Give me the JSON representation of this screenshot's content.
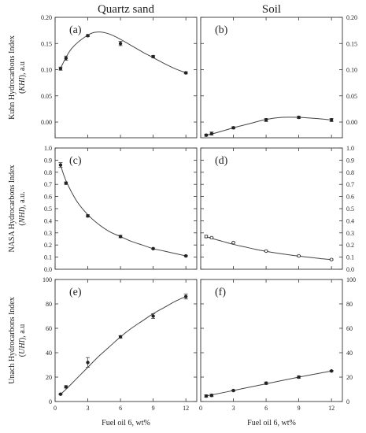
{
  "column_titles": [
    "Quartz sand",
    "Soil"
  ],
  "row_ylabels": [
    {
      "line1": "Kuhn Hydrocarbons Index",
      "abbr": "KHI",
      "unit": "), a.u"
    },
    {
      "line1": "NASA Hydrocarbons Index",
      "abbr": "NHI",
      "unit": "), a.u."
    },
    {
      "line1": "Unach Hydrocarbons Index",
      "abbr": "UHI",
      "unit": "), a.u"
    }
  ],
  "xlabel": "Fuel oil 6, wt%",
  "chart_data": [
    {
      "type": "line",
      "panel": "(a)",
      "row": 0,
      "col": 0,
      "x": [
        0.5,
        1,
        3,
        6,
        9,
        12
      ],
      "y": [
        0.102,
        0.122,
        0.165,
        0.15,
        0.125,
        0.094
      ],
      "err": [
        0.003,
        0.004,
        0.002,
        0.004,
        0.002,
        0.002
      ],
      "fit_x": [
        0.5,
        1.5,
        3,
        4,
        5,
        6,
        7,
        8,
        9,
        10,
        11,
        12
      ],
      "fit_y": [
        0.103,
        0.14,
        0.166,
        0.172,
        0.168,
        0.158,
        0.146,
        0.134,
        0.123,
        0.112,
        0.102,
        0.094
      ],
      "marker": "filled",
      "xlim": [
        0,
        13
      ],
      "ylim": [
        -0.03,
        0.2
      ],
      "xticks": [
        "0",
        "3",
        "6",
        "9",
        "12"
      ],
      "yticks": [
        "0.00",
        "0.05",
        "0.10",
        "0.15",
        "0.20"
      ],
      "show_xticklabels": false,
      "yticks_side": "left"
    },
    {
      "type": "line",
      "panel": "(b)",
      "row": 0,
      "col": 1,
      "x": [
        0.5,
        1,
        3,
        6,
        9,
        12
      ],
      "y": [
        -0.025,
        -0.022,
        -0.011,
        0.004,
        0.009,
        0.004
      ],
      "err": [
        0.002,
        0.003,
        0.002,
        0.003,
        0.002,
        0.003
      ],
      "fit_x": [
        0.5,
        1.5,
        3,
        4.5,
        6,
        7.5,
        9,
        10.5,
        12
      ],
      "fit_y": [
        -0.025,
        -0.02,
        -0.011,
        -0.003,
        0.005,
        0.009,
        0.009,
        0.007,
        0.004
      ],
      "marker": "filled",
      "xlim": [
        0,
        13
      ],
      "ylim": [
        -0.03,
        0.2
      ],
      "xticks": [
        "0",
        "3",
        "6",
        "9",
        "12"
      ],
      "yticks": [
        "0.00",
        "0.05",
        "0.10",
        "0.15",
        "0.20"
      ],
      "show_xticklabels": false,
      "yticks_side": "right"
    },
    {
      "type": "line",
      "panel": "(c)",
      "row": 1,
      "col": 0,
      "x": [
        0.5,
        1,
        3,
        6,
        9,
        12
      ],
      "y": [
        0.86,
        0.71,
        0.44,
        0.27,
        0.17,
        0.11
      ],
      "err": [
        0.02,
        0.01,
        0.01,
        0.01,
        0.005,
        0.005
      ],
      "fit_x": [
        0.5,
        1,
        2,
        3,
        4,
        5,
        6,
        7,
        8,
        9,
        10,
        11,
        12
      ],
      "fit_y": [
        0.86,
        0.73,
        0.56,
        0.45,
        0.37,
        0.31,
        0.27,
        0.23,
        0.2,
        0.17,
        0.15,
        0.13,
        0.11
      ],
      "marker": "filled",
      "xlim": [
        0,
        13
      ],
      "ylim": [
        0,
        1.0
      ],
      "xticks": [
        "0",
        "3",
        "6",
        "9",
        "12"
      ],
      "yticks": [
        "0.0",
        "0.1",
        "0.2",
        "0.3",
        "0.4",
        "0.5",
        "0.6",
        "0.7",
        "0.8",
        "0.9",
        "1.0"
      ],
      "show_xticklabels": false,
      "yticks_side": "left"
    },
    {
      "type": "line",
      "panel": "(d)",
      "row": 1,
      "col": 1,
      "x": [
        0.5,
        1,
        3,
        6,
        9,
        12
      ],
      "y": [
        0.27,
        0.26,
        0.22,
        0.15,
        0.11,
        0.08
      ],
      "err": [
        0.01,
        0.005,
        0.005,
        0.005,
        0.005,
        0.005
      ],
      "fit_x": [
        0.5,
        1,
        2,
        3,
        4,
        5,
        6,
        7,
        8,
        9,
        10,
        11,
        12
      ],
      "fit_y": [
        0.27,
        0.255,
        0.23,
        0.205,
        0.185,
        0.165,
        0.148,
        0.133,
        0.12,
        0.108,
        0.098,
        0.088,
        0.08
      ],
      "marker": "open",
      "xlim": [
        0,
        13
      ],
      "ylim": [
        0,
        1.0
      ],
      "xticks": [
        "0",
        "3",
        "6",
        "9",
        "12"
      ],
      "yticks": [
        "0.0",
        "0.1",
        "0.2",
        "0.3",
        "0.4",
        "0.5",
        "0.6",
        "0.7",
        "0.8",
        "0.9",
        "1.0"
      ],
      "show_xticklabels": false,
      "yticks_side": "right"
    },
    {
      "type": "line",
      "panel": "(e)",
      "row": 2,
      "col": 0,
      "x": [
        0.5,
        1,
        3,
        6,
        9,
        12
      ],
      "y": [
        6,
        12,
        32,
        53,
        70,
        86
      ],
      "err": [
        0.5,
        1,
        4,
        1,
        2,
        2
      ],
      "fit_x": [
        0.5,
        1,
        2,
        3,
        4,
        5,
        6,
        7,
        8,
        9,
        10,
        11,
        12
      ],
      "fit_y": [
        6,
        10,
        19,
        28,
        37,
        45,
        53,
        60,
        66,
        72,
        77,
        82,
        86
      ],
      "marker": "filled",
      "xlim": [
        0,
        13
      ],
      "ylim": [
        0,
        100
      ],
      "xticks": [
        "0",
        "3",
        "6",
        "9",
        "12"
      ],
      "yticks": [
        "0",
        "20",
        "40",
        "60",
        "80",
        "100"
      ],
      "show_xticklabels": true,
      "yticks_side": "left"
    },
    {
      "type": "line",
      "panel": "(f)",
      "row": 2,
      "col": 1,
      "x": [
        0.5,
        1,
        3,
        6,
        9,
        12
      ],
      "y": [
        4.5,
        5,
        9,
        15,
        20,
        25
      ],
      "err": [
        1,
        1,
        0.5,
        1,
        1,
        0.5
      ],
      "fit_x": [
        0.5,
        3,
        6,
        9,
        12
      ],
      "fit_y": [
        4.5,
        9,
        14.5,
        20,
        25
      ],
      "marker": "filled",
      "xlim": [
        0,
        13
      ],
      "ylim": [
        0,
        100
      ],
      "xticks": [
        "0",
        "3",
        "6",
        "9",
        "12"
      ],
      "yticks": [
        "0",
        "20",
        "40",
        "60",
        "80",
        "100"
      ],
      "show_xticklabels": true,
      "yticks_side": "right"
    }
  ]
}
